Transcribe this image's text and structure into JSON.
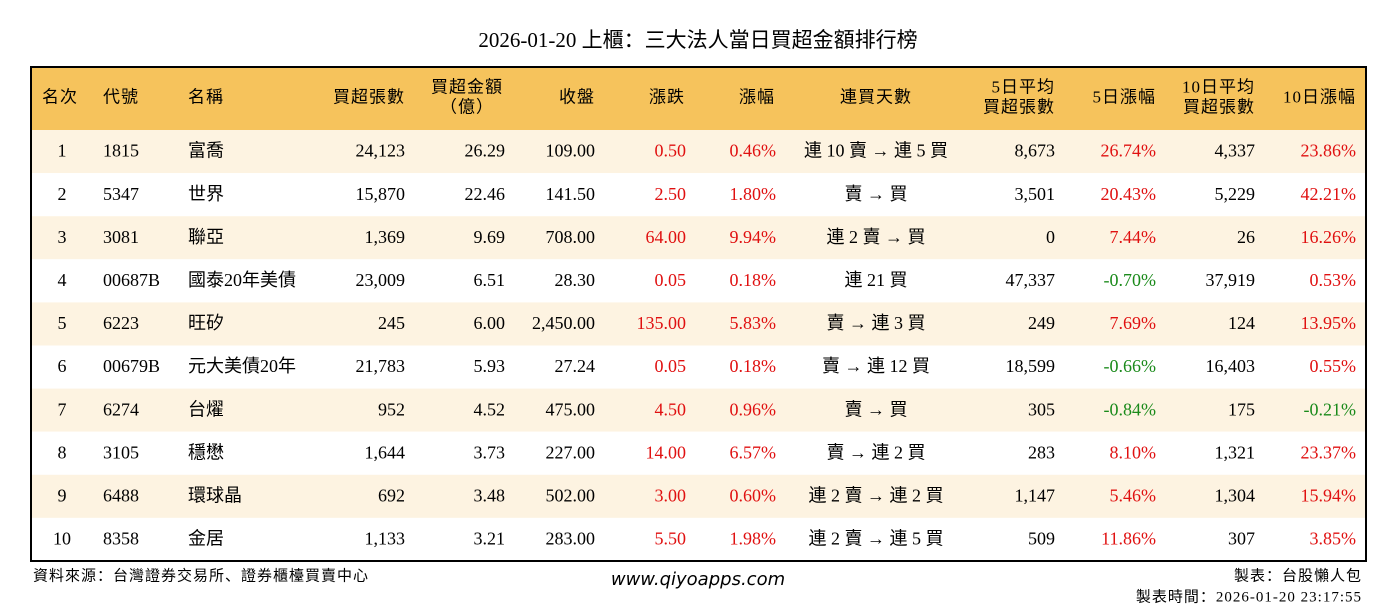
{
  "title": "2026-01-20 上櫃：三大法人當日買超金額排行榜",
  "table": {
    "headers": [
      [
        "名次"
      ],
      [
        "代號"
      ],
      [
        "名稱"
      ],
      [
        "買超張數"
      ],
      [
        "買超金額",
        "（億）"
      ],
      [
        "收盤"
      ],
      [
        "漲跌"
      ],
      [
        "漲幅"
      ],
      [
        "連買天數"
      ],
      [
        "5日平均",
        "買超張數"
      ],
      [
        "5日漲幅"
      ],
      [
        "10日平均",
        "買超張數"
      ],
      [
        "10日漲幅"
      ]
    ],
    "rows": [
      [
        "1",
        "1815",
        "富喬",
        "24,123",
        "26.29",
        "109.00",
        "0.50",
        "0.46%",
        "連 10 賣 → 連 5 買",
        "8,673",
        "26.74%",
        "4,337",
        "23.86%"
      ],
      [
        "2",
        "5347",
        "世界",
        "15,870",
        "22.46",
        "141.50",
        "2.50",
        "1.80%",
        "賣 → 買",
        "3,501",
        "20.43%",
        "5,229",
        "42.21%"
      ],
      [
        "3",
        "3081",
        "聯亞",
        "1,369",
        "9.69",
        "708.00",
        "64.00",
        "9.94%",
        "連 2 賣 → 買",
        "0",
        "7.44%",
        "26",
        "16.26%"
      ],
      [
        "4",
        "00687B",
        "國泰20年美債",
        "23,009",
        "6.51",
        "28.30",
        "0.05",
        "0.18%",
        "連 21 買",
        "47,337",
        "-0.70%",
        "37,919",
        "0.53%"
      ],
      [
        "5",
        "6223",
        "旺矽",
        "245",
        "6.00",
        "2,450.00",
        "135.00",
        "5.83%",
        "賣 → 連 3 買",
        "249",
        "7.69%",
        "124",
        "13.95%"
      ],
      [
        "6",
        "00679B",
        "元大美債20年",
        "21,783",
        "5.93",
        "27.24",
        "0.05",
        "0.18%",
        "賣 → 連 12 買",
        "18,599",
        "-0.66%",
        "16,403",
        "0.55%"
      ],
      [
        "7",
        "6274",
        "台燿",
        "952",
        "4.52",
        "475.00",
        "4.50",
        "0.96%",
        "賣 → 買",
        "305",
        "-0.84%",
        "175",
        "-0.21%"
      ],
      [
        "8",
        "3105",
        "穩懋",
        "1,644",
        "3.73",
        "227.00",
        "14.00",
        "6.57%",
        "賣 → 連 2 買",
        "283",
        "8.10%",
        "1,321",
        "23.37%"
      ],
      [
        "9",
        "6488",
        "環球晶",
        "692",
        "3.48",
        "502.00",
        "3.00",
        "0.60%",
        "連 2 賣 → 連 2 買",
        "1,147",
        "5.46%",
        "1,304",
        "15.94%"
      ],
      [
        "10",
        "8358",
        "金居",
        "1,133",
        "3.21",
        "283.00",
        "5.50",
        "1.98%",
        "連 2 賣 → 連 5 買",
        "509",
        "11.86%",
        "307",
        "3.85%"
      ]
    ]
  },
  "footer": {
    "source": "資料來源：台灣證券交易所、證券櫃檯買賣中心",
    "website": "www.qiyoapps.com",
    "author": "製表：台股懶人包",
    "time": "製表時間：2026-01-20 23:17:55"
  }
}
